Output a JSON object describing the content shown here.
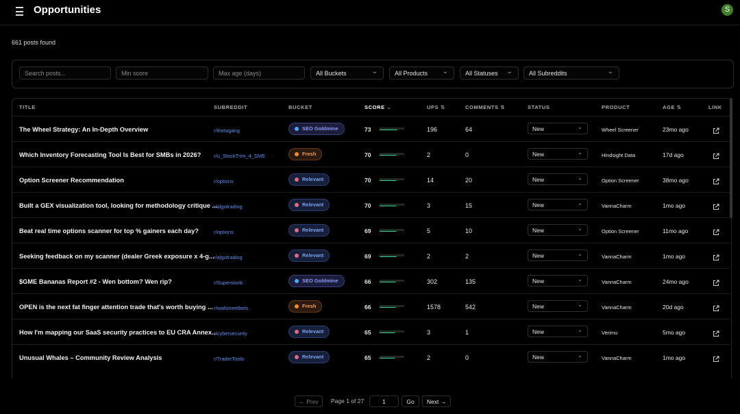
{
  "header": {
    "title": "Opportunities",
    "avatar": "S"
  },
  "summary": "661 posts found",
  "filters": {
    "search": "Search posts...",
    "min_score": "Min score",
    "max_age": "Max age (days)",
    "buckets": "All Buckets",
    "products": "All Products",
    "statuses": "All Statuses",
    "subreddits": "All Subreddits"
  },
  "table": {
    "columns": [
      "TITLE",
      "SUBREDDIT",
      "BUCKET",
      "SCORE",
      "UPS",
      "COMMENTS",
      "STATUS",
      "PRODUCT",
      "AGE",
      "LINK"
    ],
    "rows": [
      {
        "title": "The Wheel Strategy: An In-Depth Overview",
        "subreddit": "r/thetagang",
        "bucket": "SEO Goldmine",
        "score": 73,
        "ups": 196,
        "comments": 64,
        "status": "New",
        "product": "Wheel Screener",
        "age": "23mo ago"
      },
      {
        "title": "Which Inventory Forecasting Tool Is Best for SMBs in 2026?",
        "subreddit": "r/u_StockTrim_4_SME",
        "bucket": "Fresh",
        "score": 70,
        "ups": 2,
        "comments": 0,
        "status": "New",
        "product": "Hindsight Data",
        "age": "17d ago"
      },
      {
        "title": "Option Screener Recommendation",
        "subreddit": "r/options",
        "bucket": "Relevant",
        "score": 70,
        "ups": 14,
        "comments": 20,
        "status": "New",
        "product": "Option Screener",
        "age": "38mo ago"
      },
      {
        "title": "Built a GEX visualization tool, looking for methodology critique ...",
        "subreddit": "r/algotrading",
        "bucket": "Relevant",
        "score": 70,
        "ups": 3,
        "comments": 15,
        "status": "New",
        "product": "VannaCharm",
        "age": "1mo ago"
      },
      {
        "title": "Beat real time options scanner for top % gainers each day?",
        "subreddit": "r/options",
        "bucket": "Relevant",
        "score": 69,
        "ups": 5,
        "comments": 10,
        "status": "New",
        "product": "Option Screener",
        "age": "11mo ago"
      },
      {
        "title": "Seeking feedback on my scanner (dealer Greek exposure x 4-g...",
        "subreddit": "r/algotrading",
        "bucket": "Relevant",
        "score": 69,
        "ups": 2,
        "comments": 2,
        "status": "New",
        "product": "VannaCharm",
        "age": "1mo ago"
      },
      {
        "title": "$GME Bananas Report #2 - Wen bottom? Wen rip?",
        "subreddit": "r/Superstonk",
        "bucket": "SEO Goldmine",
        "score": 66,
        "ups": 302,
        "comments": 135,
        "status": "New",
        "product": "VannaCharm",
        "age": "24mo ago"
      },
      {
        "title": "OPEN is the next fat finger attention trade that's worth buying ...",
        "subreddit": "r/wallstreetbets",
        "bucket": "Fresh",
        "score": 66,
        "ups": 1578,
        "comments": 542,
        "status": "New",
        "product": "VannaCharm",
        "age": "20d ago"
      },
      {
        "title": "How I'm mapping our SaaS security practices to EU CRA Annex...",
        "subreddit": "r/cybersecurity",
        "bucket": "Relevant",
        "score": 65,
        "ups": 3,
        "comments": 1,
        "status": "New",
        "product": "Verimu",
        "age": "5mo ago"
      },
      {
        "title": "Unusual Whales – Community Review Analysis",
        "subreddit": "r/TraderTools",
        "bucket": "Relevant",
        "score": 65,
        "ups": 2,
        "comments": 0,
        "status": "New",
        "product": "VannaCharm",
        "age": "1mo ago"
      }
    ]
  },
  "pagination": {
    "prev": "← Prev",
    "page": "Page 1 of 27",
    "input": "1",
    "go": "Go",
    "next": "Next →"
  }
}
